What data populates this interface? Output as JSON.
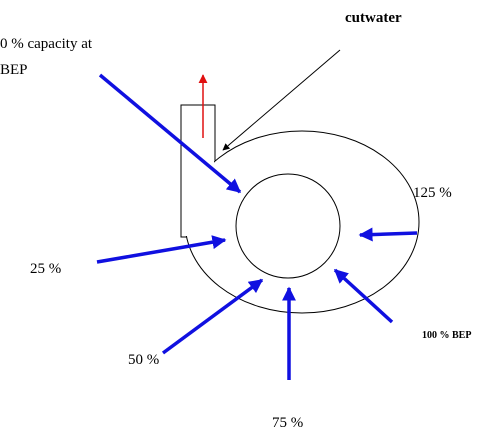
{
  "labels": {
    "cutwater": "cutwater",
    "zero_line1": "0 % capacity at",
    "zero_line2": "BEP",
    "p125": "125 %",
    "p25": "25 %",
    "p50": "50 %",
    "p100": "100 % BEP",
    "p75": "75 %"
  }
}
